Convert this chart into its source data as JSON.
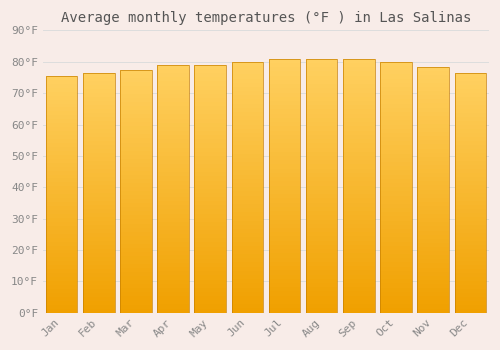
{
  "title": "Average monthly temperatures (°F ) in Las Salinas",
  "months": [
    "Jan",
    "Feb",
    "Mar",
    "Apr",
    "May",
    "Jun",
    "Jul",
    "Aug",
    "Sep",
    "Oct",
    "Nov",
    "Dec"
  ],
  "values": [
    75.5,
    76.5,
    77.5,
    79,
    79,
    80,
    81,
    81,
    81,
    80,
    78.5,
    76.5
  ],
  "ylim": [
    0,
    90
  ],
  "yticks": [
    0,
    10,
    20,
    30,
    40,
    50,
    60,
    70,
    80,
    90
  ],
  "ytick_labels": [
    "0°F",
    "10°F",
    "20°F",
    "30°F",
    "40°F",
    "50°F",
    "60°F",
    "70°F",
    "80°F",
    "90°F"
  ],
  "bar_color_bottom": "#F0A000",
  "bar_color_top": "#FFD060",
  "bar_edge_color": "#C88000",
  "background_color": "#F8ECE8",
  "grid_color": "#DDDDDD",
  "title_fontsize": 10,
  "tick_fontsize": 8,
  "font_family": "monospace",
  "bar_width": 0.85
}
